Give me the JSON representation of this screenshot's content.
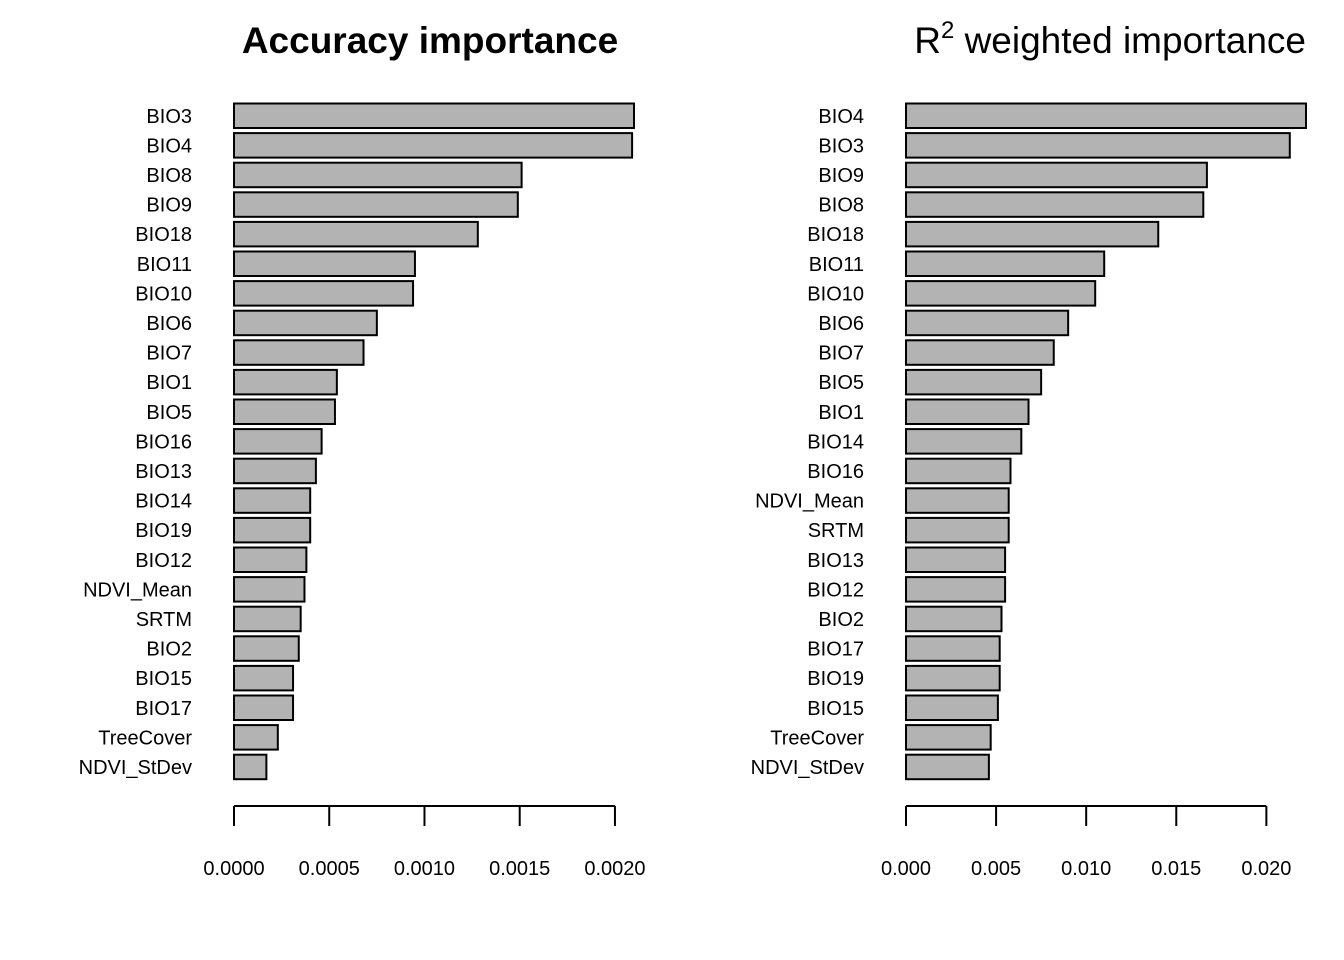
{
  "chart_data": [
    {
      "type": "bar",
      "orientation": "horizontal",
      "title": "Accuracy importance",
      "categories": [
        "BIO3",
        "BIO4",
        "BIO8",
        "BIO9",
        "BIO18",
        "BIO11",
        "BIO10",
        "BIO6",
        "BIO7",
        "BIO1",
        "BIO5",
        "BIO16",
        "BIO13",
        "BIO14",
        "BIO19",
        "BIO12",
        "NDVI_Mean",
        "SRTM",
        "BIO2",
        "BIO15",
        "BIO17",
        "TreeCover",
        "NDVI_StDev"
      ],
      "values": [
        0.0021,
        0.00209,
        0.00151,
        0.00149,
        0.00128,
        0.00095,
        0.00094,
        0.00075,
        0.00068,
        0.00054,
        0.00053,
        0.00046,
        0.00043,
        0.0004,
        0.0004,
        0.00038,
        0.00037,
        0.00035,
        0.00034,
        0.00031,
        0.00031,
        0.00023,
        0.00017
      ],
      "xlim": [
        0,
        0.0021
      ],
      "ticks": [
        0,
        0.0005,
        0.001,
        0.0015,
        0.002
      ],
      "tick_labels": [
        "0.0000",
        "0.0005",
        "0.0010",
        "0.0015",
        "0.0020"
      ],
      "grid": false,
      "bar_color": "#b3b3b3"
    },
    {
      "type": "bar",
      "orientation": "horizontal",
      "title": "R",
      "title_superscript": "2",
      "title_rest": " weighted importance",
      "categories": [
        "BIO4",
        "BIO3",
        "BIO9",
        "BIO8",
        "BIO18",
        "BIO11",
        "BIO10",
        "BIO6",
        "BIO7",
        "BIO5",
        "BIO1",
        "BIO14",
        "BIO16",
        "NDVI_Mean",
        "SRTM",
        "BIO13",
        "BIO12",
        "BIO2",
        "BIO17",
        "BIO19",
        "BIO15",
        "TreeCover",
        "NDVI_StDev"
      ],
      "values": [
        0.0222,
        0.0213,
        0.0167,
        0.0165,
        0.014,
        0.011,
        0.0105,
        0.009,
        0.0082,
        0.0075,
        0.0068,
        0.0064,
        0.0058,
        0.0057,
        0.0057,
        0.0055,
        0.0055,
        0.0053,
        0.0052,
        0.0052,
        0.0051,
        0.0047,
        0.0046
      ],
      "xlim": [
        0,
        0.0222
      ],
      "ticks": [
        0,
        0.005,
        0.01,
        0.015,
        0.02
      ],
      "tick_labels": [
        "0.000",
        "0.005",
        "0.010",
        "0.015",
        "0.020"
      ],
      "grid": false,
      "bar_color": "#b3b3b3"
    }
  ]
}
